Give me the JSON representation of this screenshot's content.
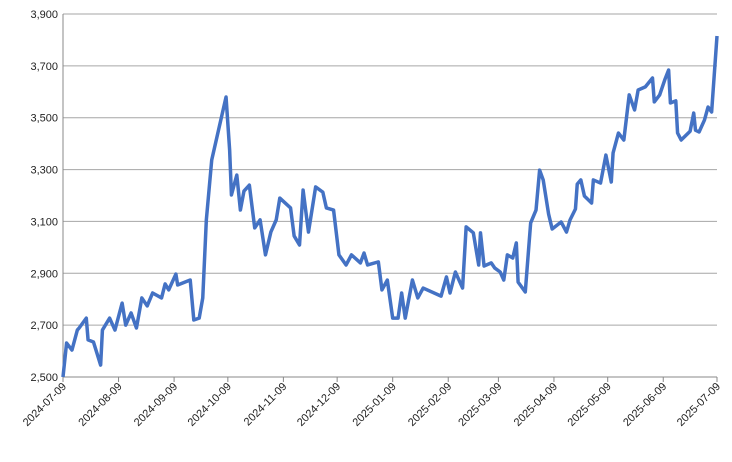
{
  "chart_data": {
    "type": "line",
    "x": [
      "2024-07-09",
      "2024-07-11",
      "2024-07-14",
      "2024-07-17",
      "2024-07-18",
      "2024-07-22",
      "2024-07-23",
      "2024-07-26",
      "2024-07-30",
      "2024-07-31",
      "2024-08-04",
      "2024-08-07",
      "2024-08-11",
      "2024-08-13",
      "2024-08-16",
      "2024-08-19",
      "2024-08-22",
      "2024-08-25",
      "2024-08-28",
      "2024-09-02",
      "2024-09-04",
      "2024-09-06",
      "2024-09-10",
      "2024-09-11",
      "2024-09-18",
      "2024-09-20",
      "2024-09-23",
      "2024-09-25",
      "2024-09-27",
      "2024-09-30",
      "2024-10-08",
      "2024-10-10",
      "2024-10-11",
      "2024-10-14",
      "2024-10-16",
      "2024-10-18",
      "2024-10-21",
      "2024-10-24",
      "2024-10-27",
      "2024-10-30",
      "2024-11-02",
      "2024-11-05",
      "2024-11-07",
      "2024-11-13",
      "2024-11-15",
      "2024-11-18",
      "2024-11-20",
      "2024-11-23",
      "2024-11-27",
      "2024-12-01",
      "2024-12-03",
      "2024-12-07",
      "2024-12-10",
      "2024-12-14",
      "2024-12-17",
      "2024-12-22",
      "2024-12-24",
      "2024-12-26",
      "2025-01-01",
      "2025-01-03",
      "2025-01-06",
      "2025-01-09",
      "2025-01-12",
      "2025-01-14",
      "2025-01-16",
      "2025-01-20",
      "2025-01-23",
      "2025-01-26",
      "2025-02-05",
      "2025-02-08",
      "2025-02-10",
      "2025-02-13",
      "2025-02-17",
      "2025-02-19",
      "2025-02-23",
      "2025-02-26",
      "2025-02-27",
      "2025-03-01",
      "2025-03-05",
      "2025-03-07",
      "2025-03-10",
      "2025-03-12",
      "2025-03-14",
      "2025-03-17",
      "2025-03-19",
      "2025-03-20",
      "2025-03-24",
      "2025-03-27",
      "2025-03-30",
      "2025-04-01",
      "2025-04-03",
      "2025-04-06",
      "2025-04-08",
      "2025-04-13",
      "2025-04-16",
      "2025-04-18",
      "2025-04-21",
      "2025-04-22",
      "2025-04-24",
      "2025-04-26",
      "2025-04-30",
      "2025-05-01",
      "2025-05-05",
      "2025-05-08",
      "2025-05-11",
      "2025-05-12",
      "2025-05-15",
      "2025-05-18",
      "2025-05-21",
      "2025-05-24",
      "2025-05-26",
      "2025-05-30",
      "2025-06-03",
      "2025-06-04",
      "2025-06-07",
      "2025-06-10",
      "2025-06-12",
      "2025-06-13",
      "2025-06-16",
      "2025-06-17",
      "2025-06-19",
      "2025-06-24",
      "2025-06-26",
      "2025-06-27",
      "2025-06-29",
      "2025-07-02",
      "2025-07-04",
      "2025-07-06",
      "2025-07-09"
    ],
    "series": [
      {
        "color": "#4472c4",
        "values": [
          2500,
          2631,
          2604,
          2681,
          2689,
          2727,
          2643,
          2635,
          2546,
          2681,
          2727,
          2681,
          2785,
          2700,
          2747,
          2689,
          2805,
          2774,
          2824,
          2805,
          2859,
          2836,
          2897,
          2855,
          2874,
          2720,
          2727,
          2805,
          3106,
          3337,
          3580,
          3375,
          3202,
          3279,
          3144,
          3217,
          3240,
          3075,
          3106,
          2971,
          3059,
          3106,
          3190,
          3152,
          3044,
          3009,
          3221,
          3059,
          3233,
          3213,
          3152,
          3144,
          2971,
          2932,
          2971,
          2940,
          2978,
          2932,
          2944,
          2836,
          2874,
          2727,
          2727,
          2824,
          2727,
          2874,
          2805,
          2843,
          2812,
          2886,
          2824,
          2905,
          2843,
          3079,
          3056,
          2932,
          3056,
          2928,
          2940,
          2920,
          2905,
          2874,
          2971,
          2959,
          3017,
          2866,
          2828,
          3094,
          3144,
          3298,
          3260,
          3129,
          3071,
          3098,
          3059,
          3106,
          3148,
          3244,
          3260,
          3198,
          3171,
          3260,
          3248,
          3356,
          3252,
          3364,
          3441,
          3414,
          3588,
          3530,
          3607,
          3619,
          3653,
          3561,
          3588,
          3649,
          3684,
          3557,
          3565,
          3441,
          3414,
          3448,
          3518,
          3452,
          3445,
          3491,
          3541,
          3522,
          3815
        ]
      }
    ],
    "ylim": [
      2500,
      3900
    ],
    "yticks": [
      {
        "value": 2500,
        "label": "2,500"
      },
      {
        "value": 2700,
        "label": "2,700"
      },
      {
        "value": 2900,
        "label": "2,900"
      },
      {
        "value": 3100,
        "label": "3,100"
      },
      {
        "value": 3300,
        "label": "3,300"
      },
      {
        "value": 3500,
        "label": "3,500"
      },
      {
        "value": 3700,
        "label": "3,700"
      },
      {
        "value": 3900,
        "label": "3,900"
      }
    ],
    "xlim": [
      "2024-07-09",
      "2025-07-09"
    ],
    "xticks": [
      "2024-07-09",
      "2024-08-09",
      "2024-09-09",
      "2024-10-09",
      "2024-11-09",
      "2024-12-09",
      "2025-01-09",
      "2025-02-09",
      "2025-03-09",
      "2025-04-09",
      "2025-05-09",
      "2025-06-09",
      "2025-07-09"
    ],
    "grid": true
  }
}
